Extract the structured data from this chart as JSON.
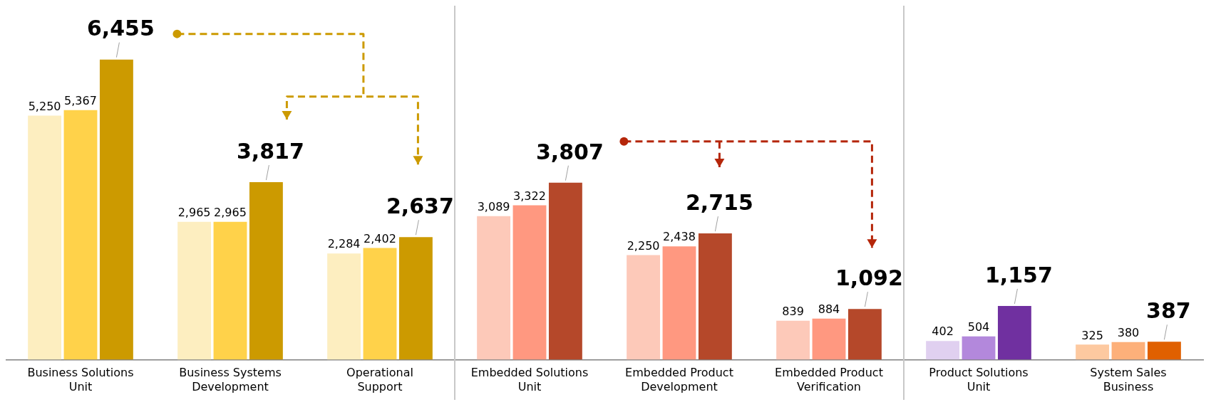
{
  "chart_data": {
    "type": "bar",
    "categories": [
      "Business Solutions Unit",
      "Business Systems Development",
      "Operational Support",
      "Embedded Solutions Unit",
      "Embedded Product Development",
      "Embedded Product Verification",
      "Product Solutions Unit",
      "System Sales Business"
    ],
    "series": [
      {
        "colors": [
          "#fdeec0",
          "#fdeec0",
          "#fdeec0",
          "#fdc9b9",
          "#fdc9b9",
          "#fdc9b9",
          "#e0d0f0",
          "#fdc9a0"
        ],
        "values": [
          5250,
          2965,
          2284,
          3089,
          2250,
          839,
          402,
          325
        ],
        "value_labels": [
          "5,250",
          "2,965",
          "2,284",
          "3,089",
          "2,250",
          "839",
          "402",
          "325"
        ]
      },
      {
        "colors": [
          "#ffd24a",
          "#ffd24a",
          "#ffd24a",
          "#ff9880",
          "#ff9880",
          "#ff9880",
          "#b388dc",
          "#fdb07a"
        ],
        "values": [
          5367,
          2965,
          2402,
          3322,
          2438,
          884,
          504,
          380
        ],
        "value_labels": [
          "5,367",
          "2,965",
          "2,402",
          "3,322",
          "2,438",
          "884",
          "504",
          "380"
        ]
      },
      {
        "colors": [
          "#cc9a00",
          "#cc9a00",
          "#cc9a00",
          "#b5482a",
          "#b5482a",
          "#b5482a",
          "#7030a0",
          "#e06000"
        ],
        "values": [
          6455,
          3817,
          2637,
          3807,
          2715,
          1092,
          1157,
          387
        ],
        "value_labels": [
          "6,455",
          "3,817",
          "2,637",
          "3,807",
          "2,715",
          "1,092",
          "1,157",
          "387"
        ]
      }
    ],
    "grid": false,
    "legend": false
  }
}
